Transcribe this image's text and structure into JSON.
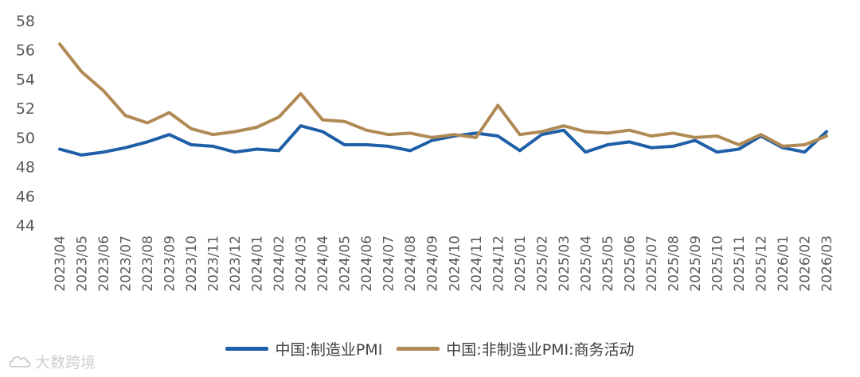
{
  "chart_data": {
    "type": "line",
    "title": "",
    "xlabel": "",
    "ylabel": "",
    "ylim": [
      44,
      58
    ],
    "yticks": [
      44,
      46,
      48,
      50,
      52,
      54,
      56,
      58
    ],
    "grid": false,
    "legend_position": "bottom",
    "categories": [
      "2023/04",
      "2023/05",
      "2023/06",
      "2023/07",
      "2023/08",
      "2023/09",
      "2023/10",
      "2023/11",
      "2023/12",
      "2024/01",
      "2024/02",
      "2024/03",
      "2024/04",
      "2024/05",
      "2024/06",
      "2024/07",
      "2024/08",
      "2024/09",
      "2024/10",
      "2024/11",
      "2024/12",
      "2025/01",
      "2025/02",
      "2025/03",
      "2025/04",
      "2025/05",
      "2025/06",
      "2025/07",
      "2025/08",
      "2025/09",
      "2025/10",
      "2025/11",
      "2025/12",
      "2026/01",
      "2026/02",
      "2026/03"
    ],
    "series": [
      {
        "name": "中国:制造业PMI",
        "color": "#1f5fa8",
        "values": [
          49.2,
          48.8,
          49.0,
          49.3,
          49.7,
          50.2,
          49.5,
          49.4,
          49.0,
          49.2,
          49.1,
          50.8,
          50.4,
          49.5,
          49.5,
          49.4,
          49.1,
          49.8,
          50.1,
          50.3,
          50.1,
          49.1,
          50.2,
          50.5,
          49.0,
          49.5,
          49.7,
          49.3,
          49.4,
          49.8,
          49.0,
          49.2,
          50.1,
          49.3,
          49.0,
          50.4
        ]
      },
      {
        "name": "中国:非制造业PMI:商务活动",
        "color": "#b08a55",
        "values": [
          56.4,
          54.5,
          53.2,
          51.5,
          51.0,
          51.7,
          50.6,
          50.2,
          50.4,
          50.7,
          51.4,
          53.0,
          51.2,
          51.1,
          50.5,
          50.2,
          50.3,
          50.0,
          50.2,
          50.0,
          52.2,
          50.2,
          50.4,
          50.8,
          50.4,
          50.3,
          50.5,
          50.1,
          50.3,
          50.0,
          50.1,
          49.5,
          50.2,
          49.4,
          49.5,
          50.1
        ]
      }
    ]
  },
  "watermark": {
    "text": "大数跨境",
    "icon": "cloud-logo-icon"
  }
}
